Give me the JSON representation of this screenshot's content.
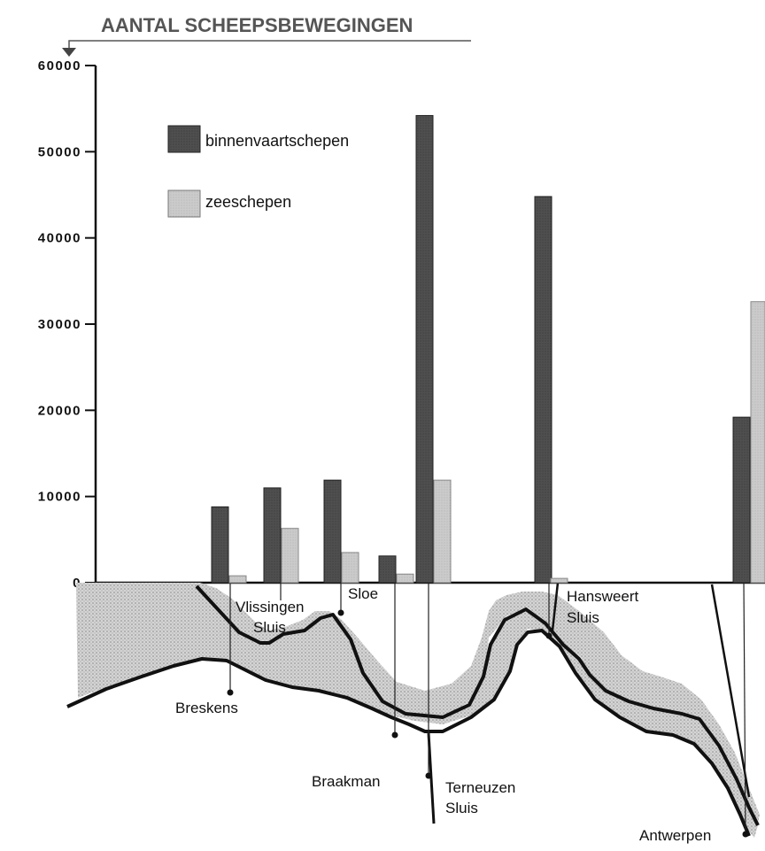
{
  "chart_data": {
    "type": "bar",
    "title": "AANTAL SCHEEPSBEWEGINGEN",
    "ylim": [
      0,
      60000
    ],
    "yticks": [
      "0",
      "10000",
      "20000",
      "30000",
      "40000",
      "50000",
      "60000"
    ],
    "categories": [
      "Breskens",
      "Vlissingen Sluis",
      "Sloe",
      "Braakman",
      "Terneuzen Sluis",
      "Hansweert Sluis",
      "Antwerpen"
    ],
    "series": [
      {
        "name": "binnenvaartschepen",
        "values": [
          8800,
          11000,
          11900,
          3100,
          54200,
          44800,
          19200
        ]
      },
      {
        "name": "zeeschepen",
        "values": [
          800,
          6300,
          3500,
          1000,
          11900,
          500,
          32600
        ]
      }
    ],
    "legend_position": "top-left",
    "colors": {
      "binnenvaartschepen": "#555555",
      "zeeschepen": "#cccccc"
    }
  },
  "labels": {
    "breskens": "Breskens",
    "vlissingen_1": "Vlissingen",
    "vlissingen_2": "Sluis",
    "sloe": "Sloe",
    "hansweert_1": "Hansweert",
    "hansweert_2": "Sluis",
    "braakman": "Braakman",
    "terneuzen_1": "Terneuzen",
    "terneuzen_2": "Sluis",
    "antwerpen": "Antwerpen"
  }
}
